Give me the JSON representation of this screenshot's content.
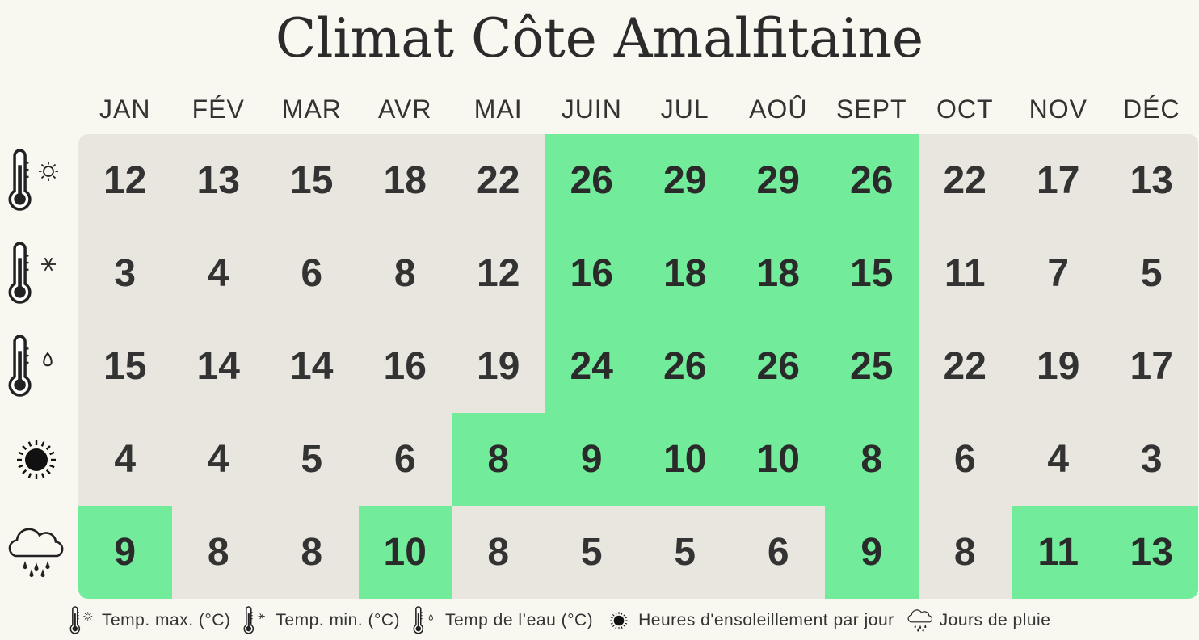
{
  "title": "Climat Côte Amalfitaine",
  "colors": {
    "background": "#f8f7f0",
    "cell": "#e9e6df",
    "highlight": "#72eb9b",
    "text": "#333333"
  },
  "chart_data": {
    "type": "table",
    "title": "Climat Côte Amalfitaine",
    "columns": [
      "JAN",
      "FÉV",
      "MAR",
      "AVR",
      "MAI",
      "JUIN",
      "JUL",
      "AOÛ",
      "SEPT",
      "OCT",
      "NOV",
      "DÉC"
    ],
    "rows": [
      {
        "icon": "thermometer-sun-icon",
        "values": [
          12,
          13,
          15,
          18,
          22,
          26,
          29,
          29,
          26,
          22,
          17,
          13
        ],
        "highlight": [
          false,
          false,
          false,
          false,
          false,
          true,
          true,
          true,
          true,
          false,
          false,
          false
        ]
      },
      {
        "icon": "thermometer-snowflake-icon",
        "values": [
          3,
          4,
          6,
          8,
          12,
          16,
          18,
          18,
          15,
          11,
          7,
          5
        ],
        "highlight": [
          false,
          false,
          false,
          false,
          false,
          true,
          true,
          true,
          true,
          false,
          false,
          false
        ]
      },
      {
        "icon": "thermometer-water-icon",
        "values": [
          15,
          14,
          14,
          16,
          19,
          24,
          26,
          26,
          25,
          22,
          19,
          17
        ],
        "highlight": [
          false,
          false,
          false,
          false,
          false,
          true,
          true,
          true,
          true,
          false,
          false,
          false
        ]
      },
      {
        "icon": "sun-icon",
        "values": [
          4,
          4,
          5,
          6,
          8,
          9,
          10,
          10,
          8,
          6,
          4,
          3
        ],
        "highlight": [
          false,
          false,
          false,
          false,
          true,
          true,
          true,
          true,
          true,
          false,
          false,
          false
        ]
      },
      {
        "icon": "rain-cloud-icon",
        "values": [
          9,
          8,
          8,
          10,
          8,
          5,
          5,
          6,
          9,
          8,
          11,
          13
        ],
        "highlight": [
          true,
          false,
          false,
          true,
          false,
          false,
          false,
          false,
          true,
          false,
          true,
          true
        ]
      }
    ]
  },
  "legend": [
    {
      "icon": "thermometer-sun-icon",
      "label": "Temp. max. (°C)"
    },
    {
      "icon": "thermometer-snowflake-icon",
      "label": "Temp. min. (°C)"
    },
    {
      "icon": "thermometer-water-icon",
      "label": "Temp de l’eau (°C)"
    },
    {
      "icon": "sun-icon",
      "label": "Heures d'ensoleillement par jour"
    },
    {
      "icon": "rain-cloud-icon",
      "label": "Jours de pluie"
    }
  ]
}
